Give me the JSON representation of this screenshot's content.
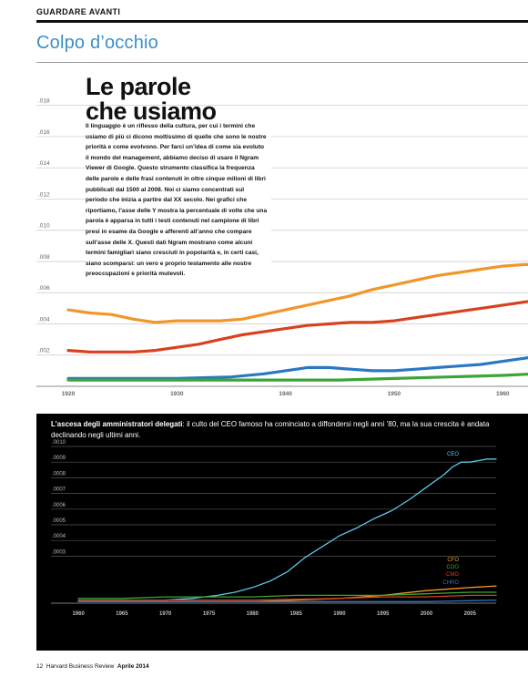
{
  "header": {
    "kicker": "GUARDARE AVANTI",
    "section": "Colpo d’occhio"
  },
  "article": {
    "headline_1": "Le parole",
    "headline_2": "che usiamo",
    "intro": "Il linguaggio è un riflesso della cultura, per cui i termini che usiamo di più ci dicono moltissimo di quelle che sono le nostre priorità e come evolvono. Per farci un’idea di come sia evoluto il mondo del management, abbiamo deciso di usare il Ngram Viewer di Google. Questo strumento classifica la frequenza delle parole e delle frasi contenuti in oltre cinque milioni di libri pubblicati dal 1500 al 2008. Noi ci siamo concentrati sul periodo che inizia a partire dal XX secolo. Nei grafici che riportiamo, l’asse delle Y mostra la percentuale di volte che una parola è apparsa in tutti i testi contenuti nel campione di libri presi in esame da Google e afferenti all’anno che compare sull’asse delle X. Questi dati Ngram mostrano come alcuni termini famigliari siano cresciuti in popolarità e, in certi casi, siano scomparsi: un vero e proprio testamento alle nostre preoccupazioni e priorità mutevoli."
  },
  "chart_data": [
    {
      "type": "line",
      "y_ticks": [
        ".002",
        ".004",
        ".006",
        ".008",
        ".010",
        ".012",
        ".014",
        ".016",
        ".018"
      ],
      "x_ticks": [
        "1920",
        "1930",
        "1940",
        "1950",
        "1960"
      ],
      "xlim": [
        1920,
        1963
      ],
      "ylim": [
        0,
        0.0195
      ],
      "grid": true,
      "series": [
        {
          "color": "#f0962a",
          "x": [
            1920,
            1922,
            1924,
            1926,
            1928,
            1930,
            1932,
            1934,
            1936,
            1938,
            1940,
            1942,
            1944,
            1946,
            1948,
            1950,
            1952,
            1954,
            1956,
            1958,
            1960,
            1962,
            1963
          ],
          "y": [
            0.0049,
            0.0047,
            0.0046,
            0.0043,
            0.0041,
            0.0042,
            0.0042,
            0.0042,
            0.0043,
            0.0046,
            0.0049,
            0.0052,
            0.0055,
            0.0058,
            0.0062,
            0.0065,
            0.0068,
            0.0071,
            0.0073,
            0.0075,
            0.0077,
            0.0078,
            0.0078
          ]
        },
        {
          "color": "#d9411e",
          "x": [
            1920,
            1922,
            1924,
            1926,
            1928,
            1930,
            1932,
            1934,
            1936,
            1938,
            1940,
            1942,
            1944,
            1946,
            1948,
            1950,
            1952,
            1954,
            1956,
            1958,
            1960,
            1962,
            1963
          ],
          "y": [
            0.0023,
            0.0022,
            0.0022,
            0.0022,
            0.0023,
            0.0025,
            0.0027,
            0.003,
            0.0033,
            0.0035,
            0.0037,
            0.0039,
            0.004,
            0.0041,
            0.0041,
            0.0042,
            0.0044,
            0.0046,
            0.0048,
            0.005,
            0.0052,
            0.0054,
            0.0055
          ]
        },
        {
          "color": "#2a78c4",
          "x": [
            1920,
            1925,
            1930,
            1935,
            1938,
            1940,
            1942,
            1944,
            1946,
            1948,
            1950,
            1952,
            1954,
            1956,
            1958,
            1960,
            1962,
            1963
          ],
          "y": [
            0.0005,
            0.0005,
            0.0005,
            0.0006,
            0.0008,
            0.001,
            0.0012,
            0.0012,
            0.0011,
            0.001,
            0.001,
            0.0011,
            0.0012,
            0.0013,
            0.0014,
            0.0016,
            0.0018,
            0.0019
          ]
        },
        {
          "color": "#3aa637",
          "x": [
            1920,
            1925,
            1930,
            1935,
            1940,
            1945,
            1950,
            1955,
            1960,
            1963
          ],
          "y": [
            0.0004,
            0.0004,
            0.0004,
            0.0004,
            0.0004,
            0.0004,
            0.0005,
            0.0006,
            0.0007,
            0.0008
          ]
        }
      ]
    },
    {
      "type": "line",
      "title": "L’ascesa degli amministratori delegati",
      "subtitle": ": il culto del CEO famoso ha cominciato a diffondersi negli anni ’80, ma la sua crescita è andata declinando negli ultimi anni.",
      "y_ticks": [
        ".0003",
        ".0004",
        ".0005",
        ".0006",
        ".0007",
        ".0008",
        ".0009",
        ".0010"
      ],
      "x_ticks": [
        "1960",
        "1965",
        "1970",
        "1975",
        "1980",
        "1985",
        "1990",
        "1995",
        "2000",
        "2005"
      ],
      "xlim": [
        1958,
        2008
      ],
      "ylim": [
        0,
        0.001
      ],
      "grid": true,
      "series": [
        {
          "name": "CEO",
          "color": "#5bc8e8",
          "x": [
            1960,
            1965,
            1970,
            1973,
            1976,
            1978,
            1980,
            1982,
            1984,
            1986,
            1988,
            1990,
            1992,
            1994,
            1996,
            1998,
            2000,
            2002,
            2003,
            2004,
            2005,
            2006,
            2007,
            2008
          ],
          "y": [
            2e-05,
            2e-05,
            2e-05,
            3e-05,
            5e-05,
            7e-05,
            0.0001,
            0.00014,
            0.0002,
            0.00029,
            0.00036,
            0.00043,
            0.00048,
            0.00054,
            0.00059,
            0.00066,
            0.00074,
            0.00082,
            0.00087,
            0.0009,
            0.0009,
            0.00091,
            0.00092,
            0.00092
          ]
        },
        {
          "name": "CFO",
          "color": "#f0962a",
          "x": [
            1960,
            1970,
            1980,
            1985,
            1990,
            1995,
            2000,
            2005,
            2008
          ],
          "y": [
            1e-05,
            1e-05,
            1e-05,
            2e-05,
            3e-05,
            5e-05,
            8e-05,
            0.0001,
            0.00011
          ]
        },
        {
          "name": "COO",
          "color": "#3aa637",
          "x": [
            1960,
            1965,
            1970,
            1975,
            1980,
            1985,
            1990,
            1995,
            2000,
            2005,
            2008
          ],
          "y": [
            3e-05,
            3e-05,
            4e-05,
            4e-05,
            4e-05,
            5e-05,
            5e-05,
            5e-05,
            6e-05,
            7e-05,
            7e-05
          ]
        },
        {
          "name": "CMO",
          "color": "#d9411e",
          "x": [
            1960,
            1970,
            1980,
            1990,
            1995,
            2000,
            2005,
            2008
          ],
          "y": [
            2e-05,
            2e-05,
            2e-05,
            3e-05,
            4e-05,
            4e-05,
            5e-05,
            5e-05
          ]
        },
        {
          "name": "CHRO",
          "color": "#2a78c4",
          "x": [
            1960,
            1980,
            1990,
            2000,
            2008
          ],
          "y": [
            1e-05,
            1e-05,
            1e-05,
            1e-05,
            2e-05
          ]
        }
      ]
    }
  ],
  "footer": {
    "page_number": "12",
    "publication": "Harvard Business Review",
    "issue": "Aprile 2014"
  }
}
